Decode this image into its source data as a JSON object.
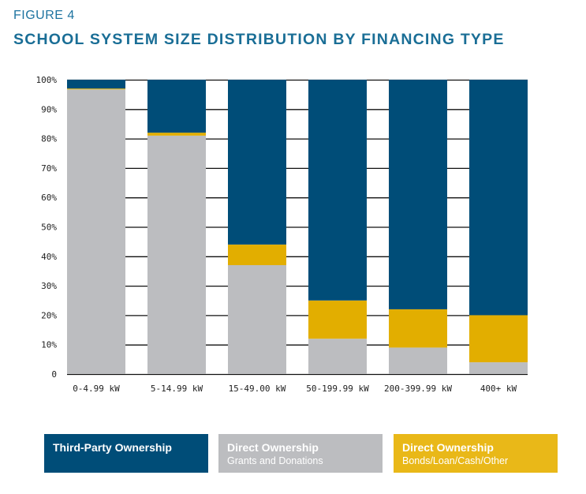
{
  "figure_label": "FIGURE 4",
  "chart_data": {
    "type": "bar",
    "stacked": true,
    "percent": true,
    "title": "SCHOOL SYSTEM SIZE DISTRIBUTION BY FINANCING TYPE",
    "xlabel": "",
    "ylabel": "",
    "ylim": [
      0,
      100
    ],
    "yticks": [
      0,
      10,
      20,
      30,
      40,
      50,
      60,
      70,
      80,
      90,
      100
    ],
    "ytick_labels": [
      "0",
      "10%",
      "20%",
      "30%",
      "40%",
      "50%",
      "60%",
      "70%",
      "80%",
      "90%",
      "100%"
    ],
    "grid": true,
    "categories": [
      "0-4.99 kW",
      "5-14.99 kW",
      "15-49.00 kW",
      "50-199.99 kW",
      "200-399.99 kW",
      "400+ kW"
    ],
    "series": [
      {
        "name": "Direct Ownership – Grants and Donations",
        "color": "#bcbdc0",
        "values": [
          96.7,
          81,
          37,
          12,
          9,
          4
        ]
      },
      {
        "name": "Direct Ownership – Bonds/Loan/Cash/Other",
        "color": "#e2ae00",
        "values": [
          0.3,
          1,
          7,
          13,
          13,
          16
        ]
      },
      {
        "name": "Third-Party Ownership",
        "color": "#004d78",
        "values": [
          3,
          18,
          56,
          75,
          78,
          80
        ]
      }
    ],
    "legend_position": "bottom"
  },
  "legend": {
    "third_party": {
      "line1": "Third-Party Ownership",
      "line2": "",
      "color": "#004d78"
    },
    "grants": {
      "line1": "Direct Ownership",
      "line2": "Grants and Donations",
      "color": "#bcbdc0"
    },
    "bonds": {
      "line1": "Direct Ownership",
      "line2": "Bonds/Loan/Cash/Other",
      "color": "#e9b818"
    }
  }
}
